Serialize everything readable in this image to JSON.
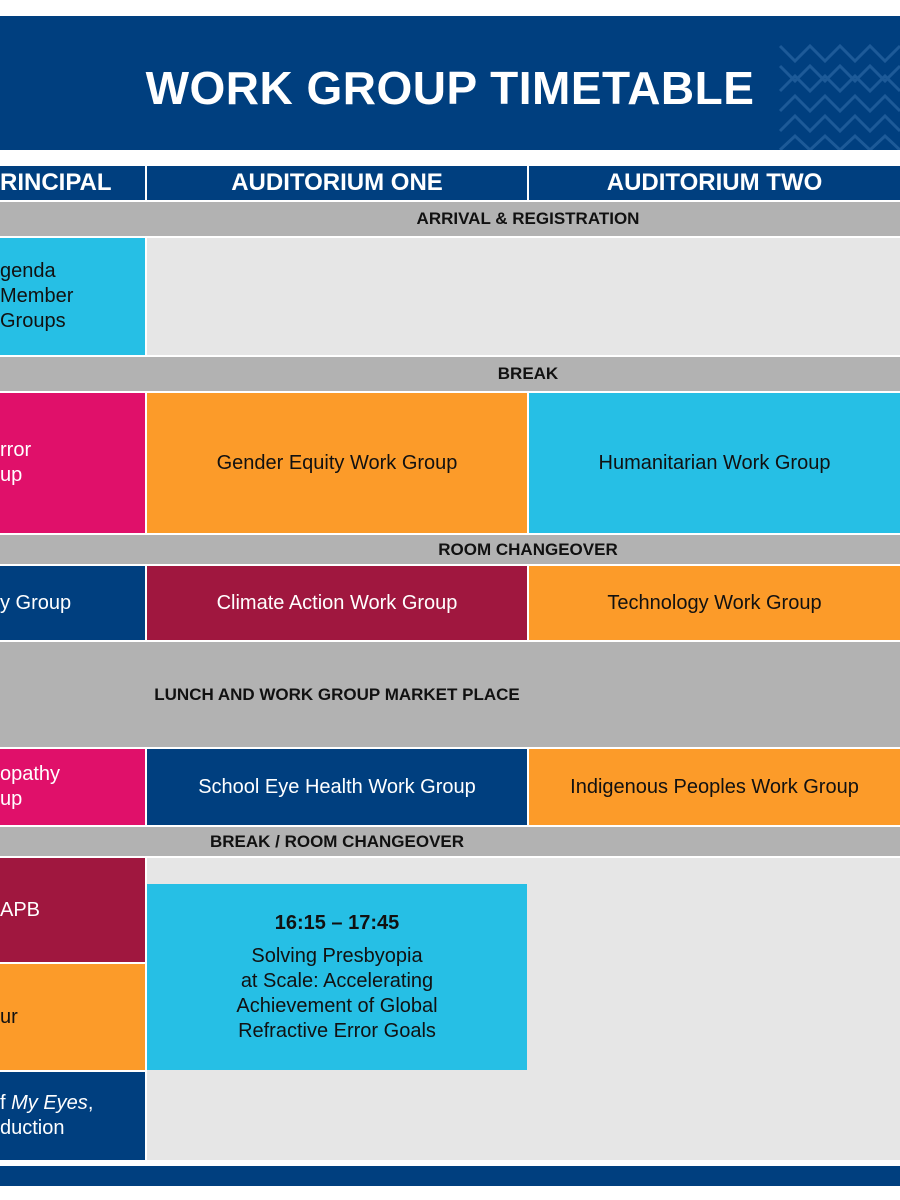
{
  "title": "WORK GROUP TIMETABLE",
  "columns": {
    "principal": "RINCIPAL",
    "auditorium_one": "AUDITORIUM ONE",
    "auditorium_two": "AUDITORIUM TWO"
  },
  "breaks": {
    "arrival": "ARRIVAL & REGISTRATION",
    "break": "BREAK",
    "room_changeover": "ROOM CHANGEOVER",
    "lunch": "LUNCH AND WORK GROUP MARKET PLACE",
    "break_room_changeover": "BREAK / ROOM CHANGEOVER"
  },
  "sessions": {
    "agenda": [
      "genda",
      "Member",
      "Groups"
    ],
    "refractive_error": [
      "rror",
      "up"
    ],
    "gender_equity": "Gender Equity Work Group",
    "humanitarian": "Humanitarian Work Group",
    "y_group": "y Group",
    "climate_action": "Climate Action Work Group",
    "technology": "Technology Work Group",
    "opathy": [
      "opathy",
      "up"
    ],
    "school_eye_health": "School Eye Health Work Group",
    "indigenous": "Indigenous Peoples Work Group",
    "iapb": "APB",
    "ur": "ur",
    "my_eyes": {
      "prefix": "f ",
      "emphasis": "My Eyes",
      "suffix": ",",
      "line2": "duction"
    },
    "presbyopia": {
      "time": "16:15 – 17:45",
      "lines": [
        "Solving Presbyopia",
        "at Scale: Accelerating",
        "Achievement of Global",
        "Refractive Error Goals"
      ]
    }
  },
  "colors": {
    "navy": "#003f7f",
    "cyan": "#26bfe5",
    "magenta": "#e0106a",
    "orange": "#fc9b29",
    "maroon": "#a0173f",
    "gray": "#b2b2b2",
    "light_gray": "#e6e6e6"
  }
}
